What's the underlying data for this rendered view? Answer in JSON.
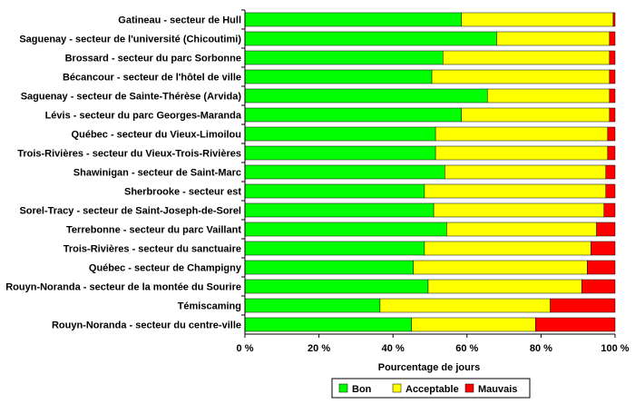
{
  "chart_data": {
    "type": "bar",
    "orientation": "horizontal",
    "stacked": true,
    "title": "",
    "xlabel": "Pourcentage de jours",
    "ylabel": "",
    "xlim": [
      0,
      100
    ],
    "x_ticks": [
      "0 %",
      "20 %",
      "40 %",
      "60 %",
      "80 %",
      "100 %"
    ],
    "grid": false,
    "legend_position": "bottom",
    "categories": [
      "Gatineau - secteur de Hull",
      "Saguenay - secteur de l'université (Chicoutimi)",
      "Brossard - secteur du parc Sorbonne",
      "Bécancour - secteur de l'hôtel de ville",
      "Saguenay - secteur de Sainte-Thérèse (Arvida)",
      "Lévis - secteur du parc Georges-Maranda",
      "Québec - secteur du Vieux-Limoilou",
      "Trois-Rivières - secteur du Vieux-Trois-Rivières",
      "Shawinigan - secteur de Saint-Marc",
      "Sherbrooke - secteur est",
      "Sorel-Tracy - secteur de Saint-Joseph-de-Sorel",
      "Terrebonne - secteur du parc Vaillant",
      "Trois-Rivières - secteur du sanctuaire",
      "Québec - secteur de Champigny",
      "Rouyn-Noranda - secteur de la montée du Sourire",
      "Témiscaming",
      "Rouyn-Noranda - secteur du centre-ville"
    ],
    "series": [
      {
        "name": "Bon",
        "color": "#00ff00",
        "values": [
          58.5,
          68,
          53.5,
          50.5,
          65.5,
          58.5,
          51.5,
          51.5,
          54,
          48.5,
          51,
          54.5,
          48.5,
          45.5,
          49.5,
          36.5,
          45
        ]
      },
      {
        "name": "Acceptable",
        "color": "#ffff00",
        "values": [
          41,
          30.5,
          45,
          48,
          33,
          40,
          46.5,
          46.5,
          43.5,
          49,
          46,
          40.5,
          45,
          47,
          41.5,
          46,
          33.5
        ]
      },
      {
        "name": "Mauvais",
        "color": "#ff0000",
        "values": [
          0.5,
          1.5,
          1.5,
          1.5,
          1.5,
          1.5,
          2,
          2,
          2.5,
          2.5,
          3,
          5,
          6.5,
          7.5,
          9,
          17.5,
          21.5
        ]
      }
    ]
  }
}
